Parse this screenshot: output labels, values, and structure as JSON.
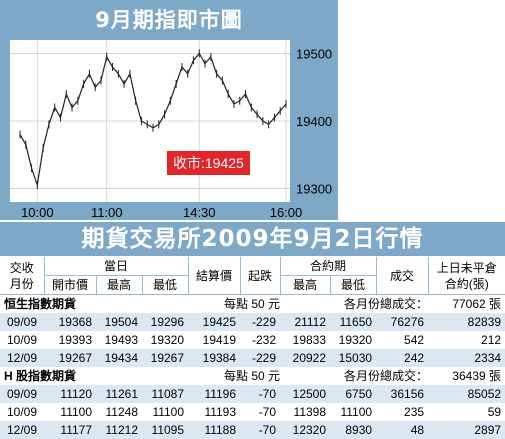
{
  "chart_title": "9月期指即市圖",
  "banner": "期貨交易所2009年9月2日行情",
  "chart_data": {
    "type": "line",
    "title": "9月期指即市圖",
    "x_ticks": [
      "10:00",
      "11:00",
      "14:30",
      "16:00"
    ],
    "y_ticks": [
      "19500",
      "19400",
      "19300"
    ],
    "ylim": [
      19280,
      19520
    ],
    "close_label": "收市:19425",
    "x": [
      "09:45",
      "09:50",
      "09:55",
      "10:00",
      "10:05",
      "10:10",
      "10:15",
      "10:20",
      "10:25",
      "10:30",
      "10:35",
      "10:40",
      "10:45",
      "10:50",
      "10:55",
      "11:00",
      "11:05",
      "11:10",
      "11:15",
      "11:20",
      "11:25",
      "11:30",
      "11:35",
      "11:40",
      "11:45",
      "11:50",
      "11:55",
      "12:00",
      "14:30",
      "14:35",
      "14:40",
      "14:45",
      "14:50",
      "14:55",
      "15:00",
      "15:05",
      "15:10",
      "15:15",
      "15:20",
      "15:25",
      "15:30",
      "15:35",
      "15:40",
      "15:45",
      "15:50",
      "15:55",
      "16:00"
    ],
    "values": [
      19380,
      19365,
      19330,
      19305,
      19360,
      19395,
      19420,
      19405,
      19440,
      19420,
      19430,
      19455,
      19470,
      19450,
      19460,
      19495,
      19480,
      19470,
      19455,
      19470,
      19430,
      19400,
      19395,
      19390,
      19395,
      19410,
      19430,
      19455,
      19480,
      19470,
      19490,
      19500,
      19485,
      19495,
      19470,
      19460,
      19440,
      19425,
      19430,
      19440,
      19420,
      19410,
      19400,
      19395,
      19405,
      19415,
      19425
    ]
  },
  "table": {
    "headers": {
      "col1": "交收",
      "col1b": "月份",
      "group_day": "當日",
      "open": "開市價",
      "high": "最高",
      "low": "最低",
      "settle": "結算價",
      "change": "起跌",
      "group_contract": "合約期",
      "c_high": "最高",
      "c_low": "最低",
      "volume": "成交",
      "oi1": "上日未平倉",
      "oi2": "合約(張)"
    },
    "sections": [
      {
        "name": "恒生指數期貨",
        "point": "每點 50 元",
        "total_label": "各月份總成交：",
        "total": "77062 張",
        "rows": [
          [
            "09/09",
            "19368",
            "19504",
            "19296",
            "19425",
            "-229",
            "21112",
            "11650",
            "76276",
            "82839"
          ],
          [
            "10/09",
            "19393",
            "19493",
            "19320",
            "19419",
            "-232",
            "19833",
            "19320",
            "542",
            "212"
          ],
          [
            "12/09",
            "19267",
            "19434",
            "19267",
            "19384",
            "-229",
            "20922",
            "15030",
            "242",
            "2334"
          ]
        ]
      },
      {
        "name": "H 股指數期貨",
        "point": "每點 50 元",
        "total_label": "各月份總成交：",
        "total": "36439 張",
        "rows": [
          [
            "09/09",
            "11120",
            "11261",
            "11087",
            "11196",
            "-70",
            "12500",
            "6750",
            "36156",
            "85052"
          ],
          [
            "10/09",
            "11100",
            "11248",
            "11100",
            "11193",
            "-70",
            "11398",
            "11100",
            "235",
            "59"
          ],
          [
            "12/09",
            "11177",
            "11212",
            "11095",
            "11188",
            "-70",
            "12320",
            "8930",
            "48",
            "2897"
          ]
        ]
      }
    ]
  }
}
